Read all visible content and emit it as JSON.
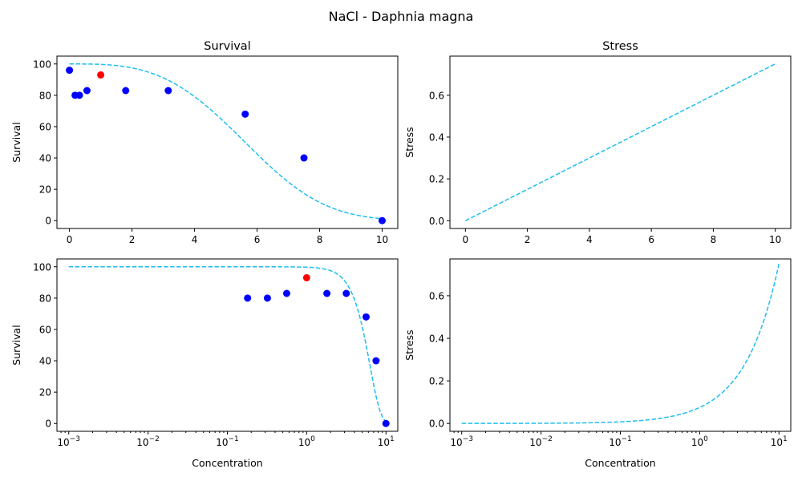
{
  "figure": {
    "title": "NaCl - Daphnia magna"
  },
  "chart_data": [
    {
      "id": "survival-linear",
      "type": "scatter",
      "title": "Survival",
      "xlabel": "",
      "ylabel": "Survival",
      "xscale": "linear",
      "xlim": [
        -0.4,
        10.5
      ],
      "ylim": [
        -5,
        105
      ],
      "xticks": [
        0,
        2,
        4,
        6,
        8,
        10
      ],
      "xticklabels": [
        "0",
        "2",
        "4",
        "6",
        "8",
        "10"
      ],
      "yticks": [
        0,
        20,
        40,
        60,
        80,
        100
      ],
      "yticklabels": [
        "0",
        "20",
        "40",
        "60",
        "80",
        "100"
      ],
      "curve": {
        "model": "survival",
        "xmin": 0,
        "xmax": 10,
        "color": "#1ebef0",
        "style": "dashed"
      },
      "points": {
        "x": [
          0,
          0.18,
          0.32,
          0.56,
          1.8,
          3.16,
          5.62,
          7.5,
          10
        ],
        "y": [
          96,
          80,
          80,
          83,
          83,
          83,
          68,
          40,
          0
        ],
        "color": "#0000ff"
      },
      "highlight": {
        "x": [
          1.0
        ],
        "y": [
          93
        ],
        "color": "#ff0000"
      }
    },
    {
      "id": "stress-linear",
      "type": "line",
      "title": "Stress",
      "xlabel": "",
      "ylabel": "Stress",
      "xscale": "linear",
      "xlim": [
        -0.5,
        10.5
      ],
      "ylim": [
        -0.037,
        0.787
      ],
      "xticks": [
        0,
        2,
        4,
        6,
        8,
        10
      ],
      "xticklabels": [
        "0",
        "2",
        "4",
        "6",
        "8",
        "10"
      ],
      "yticks": [
        0,
        0.2,
        0.4,
        0.6
      ],
      "yticklabels": [
        "0.0",
        "0.2",
        "0.4",
        "0.6"
      ],
      "curve": {
        "model": "stress",
        "xmin": 0,
        "xmax": 10,
        "color": "#1ebef0",
        "style": "dashed"
      }
    },
    {
      "id": "survival-log",
      "type": "scatter",
      "title": "",
      "xlabel": "Concentration",
      "ylabel": "Survival",
      "xscale": "log",
      "xlim": [
        0.00071,
        14.1
      ],
      "ylim": [
        -5,
        105
      ],
      "xticks": [
        0.001,
        0.01,
        0.1,
        1,
        10
      ],
      "xticklabels": [
        [
          "10",
          "−3"
        ],
        [
          "10",
          "−2"
        ],
        [
          "10",
          "−1"
        ],
        [
          "10",
          "0"
        ],
        [
          "10",
          "1"
        ]
      ],
      "yticks": [
        0,
        20,
        40,
        60,
        80,
        100
      ],
      "yticklabels": [
        "0",
        "20",
        "40",
        "60",
        "80",
        "100"
      ],
      "curve": {
        "model": "survival",
        "xmin": 0.001,
        "xmax": 10,
        "color": "#1ebef0",
        "style": "dashed"
      },
      "points": {
        "x": [
          0.18,
          0.32,
          0.56,
          1.8,
          3.16,
          5.62,
          7.5,
          10
        ],
        "y": [
          80,
          80,
          83,
          83,
          83,
          68,
          40,
          0
        ],
        "color": "#0000ff"
      },
      "highlight": {
        "x": [
          1.0
        ],
        "y": [
          93
        ],
        "color": "#ff0000"
      }
    },
    {
      "id": "stress-log",
      "type": "line",
      "title": "",
      "xlabel": "Concentration",
      "ylabel": "Stress",
      "xscale": "log",
      "xlim": [
        0.00071,
        14.1
      ],
      "ylim": [
        -0.037,
        0.773
      ],
      "xticks": [
        0.001,
        0.01,
        0.1,
        1,
        10
      ],
      "xticklabels": [
        [
          "10",
          "−3"
        ],
        [
          "10",
          "−2"
        ],
        [
          "10",
          "−1"
        ],
        [
          "10",
          "0"
        ],
        [
          "10",
          "1"
        ]
      ],
      "yticks": [
        0,
        0.2,
        0.4,
        0.6
      ],
      "yticklabels": [
        "0.0",
        "0.2",
        "0.4",
        "0.6"
      ],
      "curve": {
        "model": "stress",
        "xmin": 0.001,
        "xmax": 10,
        "color": "#1ebef0",
        "style": "dashed"
      }
    }
  ]
}
